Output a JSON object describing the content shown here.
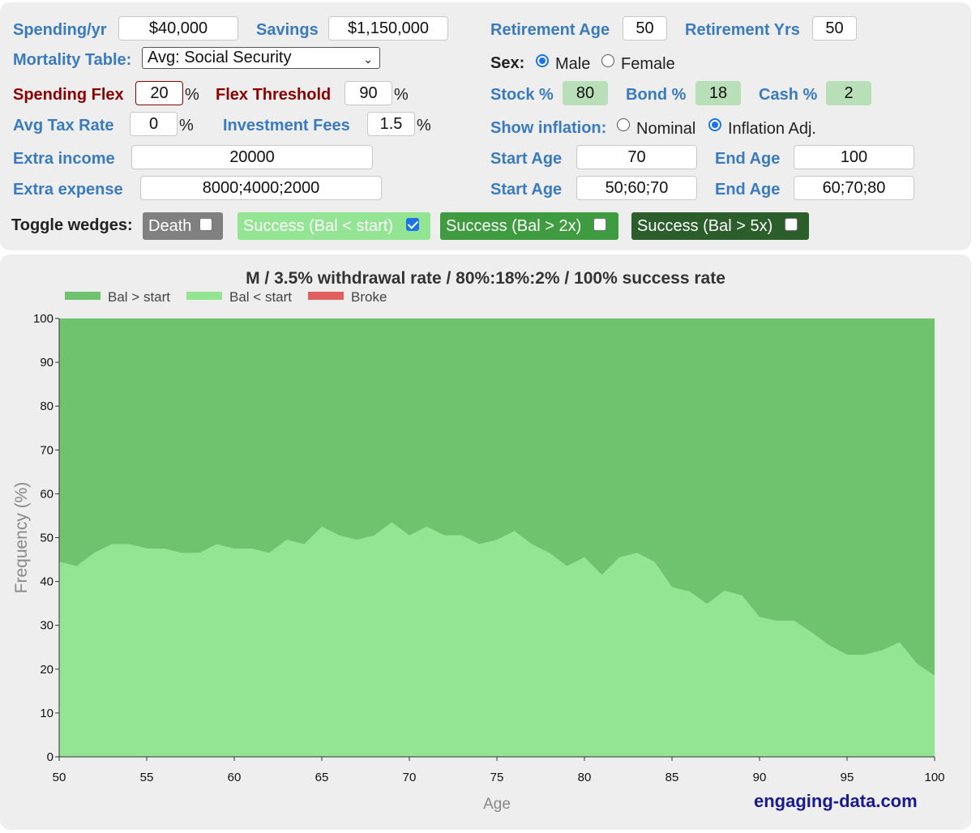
{
  "controls": {
    "spending_label": "Spending/yr",
    "spending_value": "$40,000",
    "savings_label": "Savings",
    "savings_value": "$1,150,000",
    "mortality_label": "Mortality Table:",
    "mortality_value": "Avg: Social Security",
    "spending_flex_label": "Spending Flex",
    "spending_flex_value": "20",
    "flex_threshold_label": "Flex Threshold",
    "flex_threshold_value": "90",
    "pct": "%",
    "tax_label": "Avg Tax Rate",
    "tax_value": "0",
    "fees_label": "Investment Fees",
    "fees_value": "1.5",
    "extra_income_label": "Extra income",
    "extra_income_value": "20000",
    "extra_expense_label": "Extra expense",
    "extra_expense_value": "8000;4000;2000",
    "retirement_age_label": "Retirement Age",
    "retirement_age_value": "50",
    "retirement_yrs_label": "Retirement Yrs",
    "retirement_yrs_value": "50",
    "sex_label": "Sex:",
    "sex_male": "Male",
    "sex_female": "Female",
    "sex_selected": "Male",
    "stock_label": "Stock %",
    "stock_value": "80",
    "bond_label": "Bond %",
    "bond_value": "18",
    "cash_label": "Cash %",
    "cash_value": "2",
    "inflation_label": "Show inflation:",
    "inflation_nominal": "Nominal",
    "inflation_adj": "Inflation Adj.",
    "inflation_selected": "Inflation Adj.",
    "income_start_label": "Start Age",
    "income_start_value": "70",
    "income_end_label": "End Age",
    "income_end_value": "100",
    "expense_start_label": "Start Age",
    "expense_start_value": "50;60;70",
    "expense_end_label": "End Age",
    "expense_end_value": "60;70;80"
  },
  "wedges": {
    "label": "Toggle wedges:",
    "items": [
      {
        "label": "Death",
        "checked": false,
        "color": "#808080"
      },
      {
        "label": "Success (Bal < start)",
        "checked": true,
        "color": "#93e593"
      },
      {
        "label": "Success (Bal > 2x)",
        "checked": false,
        "color": "#3f9b3f"
      },
      {
        "label": "Success (Bal > 5x)",
        "checked": false,
        "color": "#2c5e2c"
      }
    ]
  },
  "site": "engaging-data.com",
  "chart_data": {
    "type": "area",
    "title": "M / 3.5% withdrawal rate / 80%:18%:2% / 100% success rate",
    "xlabel": "Age",
    "ylabel": "Frequency (%)",
    "xlim": [
      50,
      100
    ],
    "ylim": [
      0,
      100
    ],
    "x_ticks": [
      50,
      55,
      60,
      65,
      70,
      75,
      80,
      85,
      90,
      95,
      100
    ],
    "y_ticks": [
      0,
      10,
      20,
      30,
      40,
      50,
      60,
      70,
      80,
      90,
      100
    ],
    "stacked": true,
    "legend_position": "top-left",
    "legend": [
      {
        "name": "Bal > start",
        "color": "#6fc36f"
      },
      {
        "name": "Bal < start",
        "color": "#93e593"
      },
      {
        "name": "Broke",
        "color": "#e06060"
      }
    ],
    "x": [
      50,
      51,
      52,
      53,
      54,
      55,
      56,
      57,
      58,
      59,
      60,
      61,
      62,
      63,
      64,
      65,
      66,
      67,
      68,
      69,
      70,
      71,
      72,
      73,
      74,
      75,
      76,
      77,
      78,
      79,
      80,
      81,
      82,
      83,
      84,
      85,
      86,
      87,
      88,
      89,
      90,
      91,
      92,
      93,
      94,
      95,
      96,
      97,
      98,
      99,
      100
    ],
    "series": [
      {
        "name": "Broke",
        "color": "#e06060",
        "values": [
          0,
          0,
          0,
          0,
          0,
          0,
          0,
          0,
          0,
          0,
          0,
          0,
          0,
          0,
          0,
          0,
          0,
          0,
          0,
          0,
          0,
          0,
          0,
          0,
          0,
          0,
          0,
          0,
          0,
          0,
          0,
          0,
          0,
          0,
          0,
          0,
          0,
          0,
          0,
          0,
          0,
          0,
          0,
          0,
          0,
          0,
          0,
          0,
          0,
          0,
          0
        ]
      },
      {
        "name": "Bal < start",
        "color": "#93e593",
        "values": [
          44.5,
          43.5,
          46.5,
          48.5,
          48.5,
          47.5,
          47.5,
          46.5,
          46.5,
          48.5,
          47.5,
          47.5,
          46.5,
          49.5,
          48.5,
          52.5,
          50.5,
          49.5,
          50.5,
          53.5,
          50.5,
          52.5,
          50.5,
          50.5,
          48.5,
          49.5,
          51.5,
          48.5,
          46.5,
          43.5,
          45.5,
          41.5,
          45.5,
          46.5,
          44.5,
          38.7,
          37.7,
          34.9,
          37.9,
          36.8,
          31.9,
          31.0,
          31.0,
          28.3,
          25.4,
          23.3,
          23.3,
          24.3,
          26.1,
          21.2,
          18.5
        ]
      },
      {
        "name": "Bal > start",
        "color": "#6fc36f",
        "values": [
          55.5,
          56.5,
          53.5,
          51.5,
          51.5,
          52.5,
          52.5,
          53.5,
          53.5,
          51.5,
          52.5,
          52.5,
          53.5,
          50.5,
          51.5,
          47.5,
          49.5,
          50.5,
          49.5,
          46.5,
          49.5,
          47.5,
          49.5,
          49.5,
          51.5,
          50.5,
          48.5,
          51.5,
          53.5,
          56.5,
          54.5,
          58.5,
          54.5,
          53.5,
          55.5,
          61.3,
          62.3,
          65.1,
          62.1,
          63.2,
          68.1,
          69.0,
          69.0,
          71.7,
          74.6,
          76.7,
          76.7,
          75.7,
          73.9,
          78.8,
          81.5
        ]
      }
    ]
  }
}
